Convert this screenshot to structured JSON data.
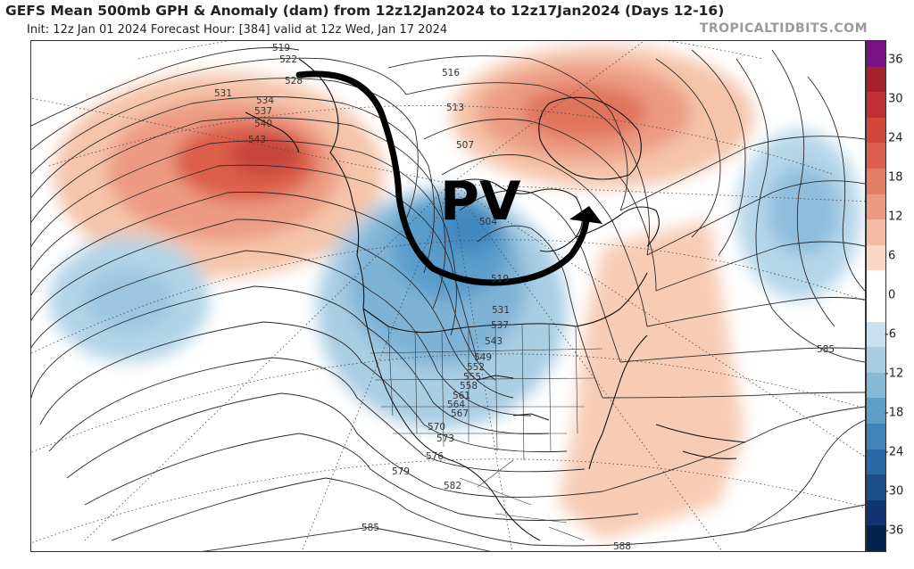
{
  "header": {
    "title": "GEFS Mean 500mb GPH & Anomaly (dam) from 12z12Jan2024 to 12z17Jan2024 (Days 12-16)",
    "subtitle": "Init: 12z Jan 01 2024   Forecast Hour: [384]   valid at 12z Wed, Jan 17 2024",
    "watermark": "TROPICALTIDBITS.COM"
  },
  "map": {
    "annotation": "PV",
    "contour_labels": [
      "519",
      "522",
      "528",
      "531",
      "534",
      "537",
      "540",
      "543",
      "516",
      "513",
      "507",
      "504",
      "519",
      "531",
      "537",
      "543",
      "549",
      "552",
      "555",
      "558",
      "561",
      "564",
      "567",
      "570",
      "573",
      "576",
      "579",
      "582",
      "585",
      "585",
      "588"
    ]
  },
  "colorbar": {
    "ticks": [
      "36",
      "30",
      "24",
      "18",
      "12",
      "6",
      "0",
      "-6",
      "-12",
      "-18",
      "-24",
      "-30",
      "-36"
    ],
    "colors": [
      "#7b0f86",
      "#a61f2d",
      "#c22f33",
      "#d2473c",
      "#db5f4c",
      "#e47d66",
      "#ec9b82",
      "#f3bba3",
      "#f8d8c5",
      "#ffffff",
      "#ffffff",
      "#c9e0ef",
      "#a8cde3",
      "#86b8d8",
      "#5f9ec9",
      "#3f83bb",
      "#2a69a8",
      "#1d4e8c",
      "#0f3470",
      "#06234f"
    ]
  }
}
